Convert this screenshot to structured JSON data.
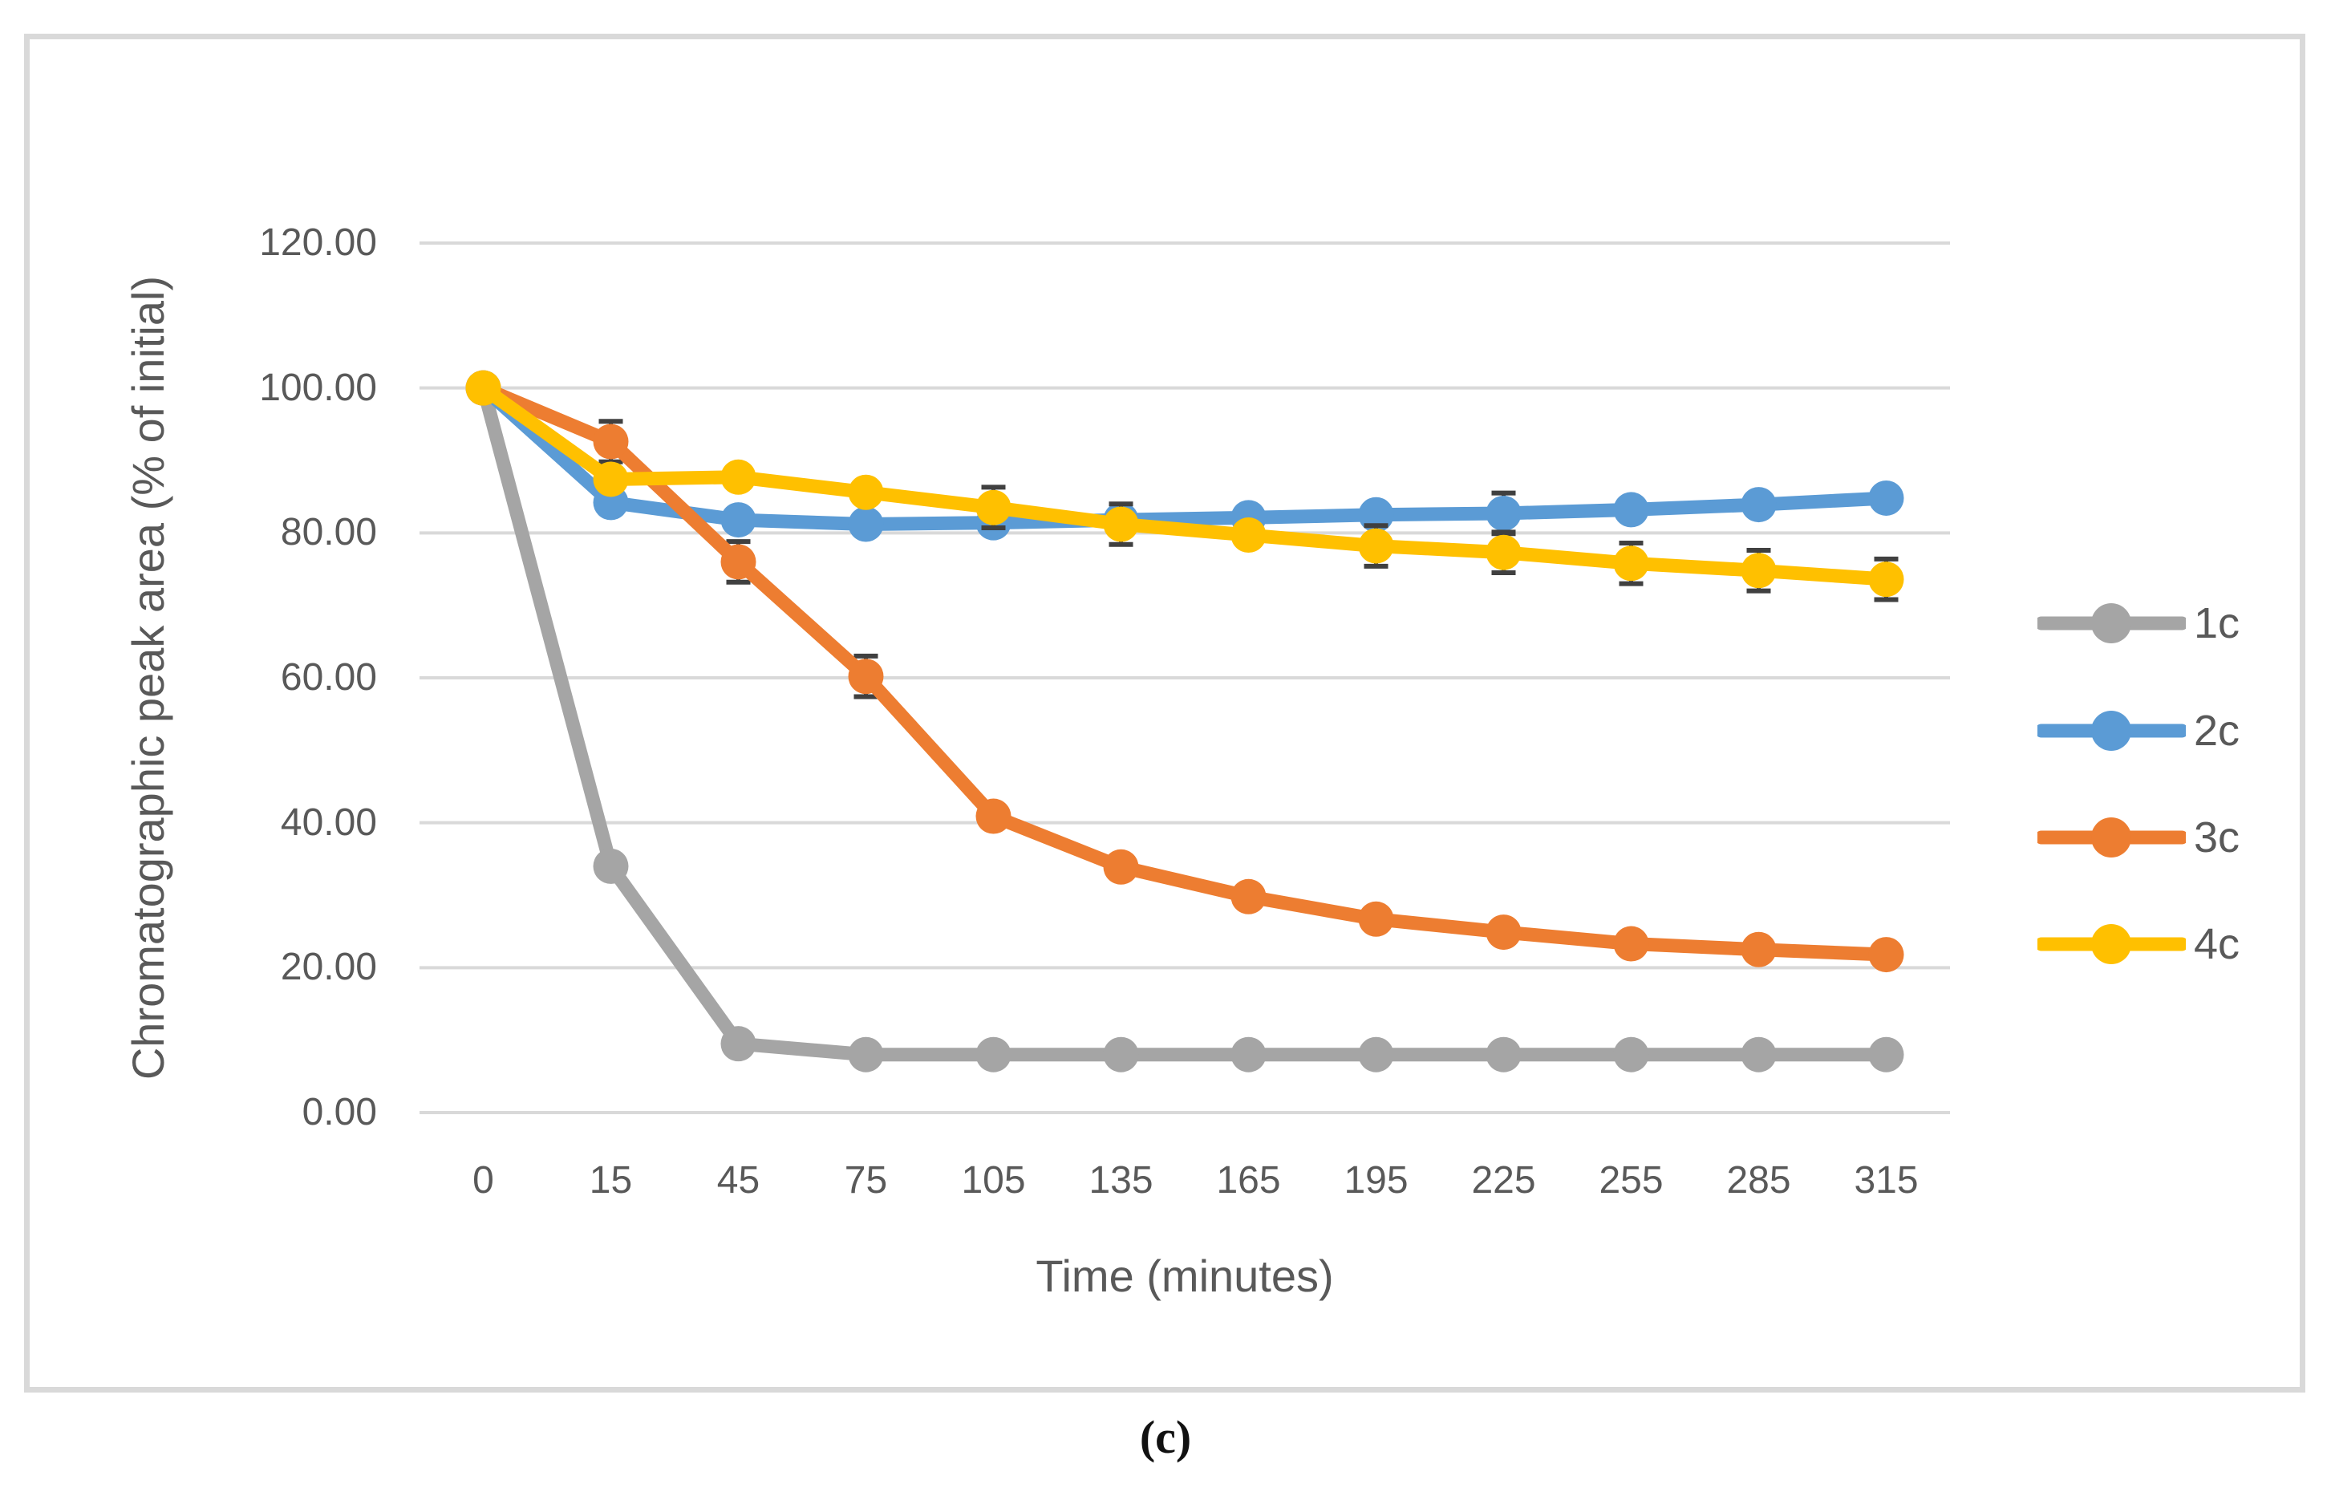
{
  "figure": {
    "caption": "(c)"
  },
  "chart_data": {
    "type": "line",
    "title": "",
    "xlabel": "Time (minutes)",
    "ylabel": "Chromatographic peak area (% of initial)",
    "categories": [
      0,
      15,
      45,
      75,
      105,
      135,
      165,
      195,
      225,
      255,
      285,
      315
    ],
    "x_tick_labels": [
      "0",
      "15",
      "45",
      "75",
      "105",
      "135",
      "165",
      "195",
      "225",
      "255",
      "285",
      "315"
    ],
    "y_axis": {
      "min": 0,
      "max": 120,
      "step": 20,
      "tick_labels": [
        "0.00",
        "20.00",
        "40.00",
        "60.00",
        "80.00",
        "100.00",
        "120.00"
      ]
    },
    "grid": true,
    "legend_position": "right",
    "series": [
      {
        "name": "1c",
        "color": "#A5A5A5",
        "values": [
          100,
          34.0,
          9.5,
          8.0,
          8.0,
          8.0,
          8.0,
          8.0,
          8.0,
          8.0,
          8.0,
          8.0
        ]
      },
      {
        "name": "2c",
        "color": "#5B9BD5",
        "values": [
          100,
          84.2,
          81.8,
          81.2,
          81.4,
          81.8,
          82.1,
          82.5,
          82.7,
          83.2,
          83.9,
          84.8
        ]
      },
      {
        "name": "3c",
        "color": "#ED7D31",
        "values": [
          100,
          92.6,
          76.0,
          60.2,
          40.9,
          33.9,
          29.8,
          26.7,
          24.9,
          23.3,
          22.5,
          21.8
        ]
      },
      {
        "name": "4c",
        "color": "#FFC000",
        "values": [
          100,
          87.4,
          87.7,
          85.6,
          83.5,
          81.2,
          79.7,
          78.2,
          77.3,
          75.8,
          74.8,
          73.6
        ]
      }
    ],
    "error_bars": [
      {
        "series": "3c",
        "category": 15,
        "plus_minus": 2.8
      },
      {
        "series": "3c",
        "category": 45,
        "plus_minus": 2.8
      },
      {
        "series": "3c",
        "category": 75,
        "plus_minus": 2.8
      },
      {
        "series": "2c",
        "category": 225,
        "plus_minus": 2.8
      },
      {
        "series": "4c",
        "category": 105,
        "plus_minus": 2.8
      },
      {
        "series": "4c",
        "category": 135,
        "plus_minus": 2.8
      },
      {
        "series": "4c",
        "category": 195,
        "plus_minus": 2.8
      },
      {
        "series": "4c",
        "category": 225,
        "plus_minus": 2.8
      },
      {
        "series": "4c",
        "category": 255,
        "plus_minus": 2.8
      },
      {
        "series": "4c",
        "category": 285,
        "plus_minus": 2.8
      },
      {
        "series": "4c",
        "category": 315,
        "plus_minus": 2.8
      }
    ],
    "colors": {
      "axis_text": "#595959",
      "gridline": "#D9D9D9",
      "frame_border": "#D9D9D9",
      "error_bar": "#404040",
      "background": "#FFFFFF"
    }
  }
}
